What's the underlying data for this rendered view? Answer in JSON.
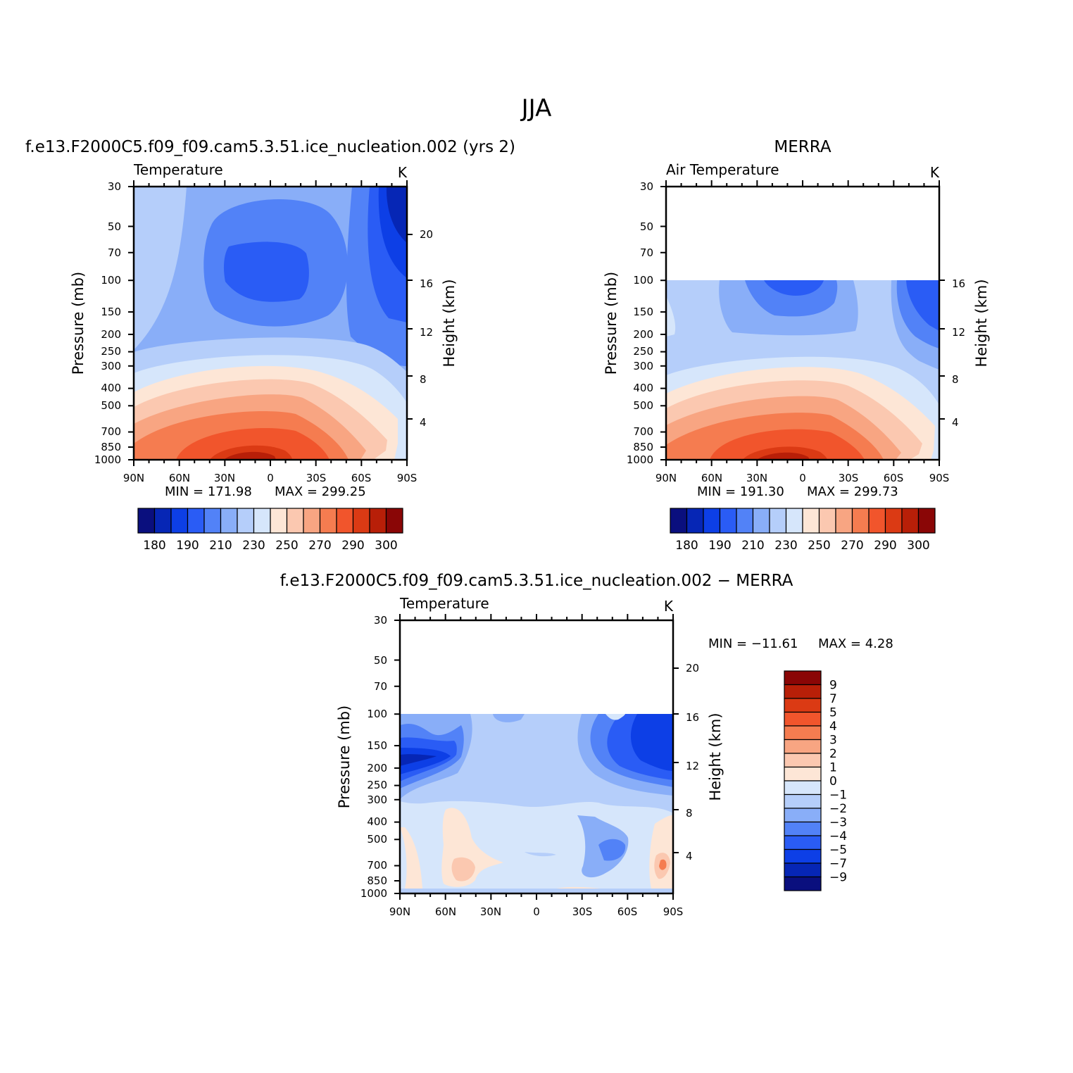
{
  "figure": {
    "title": "JJA"
  },
  "palette": [
    "#0a0f7e",
    "#0626b5",
    "#0d3fe6",
    "#2a5cf5",
    "#5282f7",
    "#89aef8",
    "#b5cefa",
    "#d6e6fb",
    "#fde6d6",
    "#fbc8b0",
    "#f8a582",
    "#f57c50",
    "#f1552c",
    "#db3a14",
    "#b81f08",
    "#8a0606"
  ],
  "chart_data": [
    {
      "type": "heatmap",
      "panel": "model",
      "title": "f.e13.F2000C5.f09_f09.cam5.3.51.ice_nucleation.002 (yrs 2)",
      "variable": "Temperature",
      "units": "K",
      "xlabel": "",
      "ylabel": "Pressure (mb)",
      "y2label": "Height (km)",
      "x_ticks": [
        "90N",
        "60N",
        "30N",
        "0",
        "30S",
        "60S",
        "90S"
      ],
      "y_ticks": [
        "30",
        "50",
        "70",
        "100",
        "150",
        "200",
        "250",
        "300",
        "400",
        "500",
        "700",
        "850",
        "1000"
      ],
      "y2_ticks": [
        "20",
        "16",
        "12",
        "8",
        "4"
      ],
      "y_scale": "log",
      "ylim": [
        1000,
        30
      ],
      "min": "171.98",
      "max": "299.25",
      "min_label": "MIN = 171.98",
      "max_label": "MAX = 299.25",
      "colorbar": {
        "orientation": "horizontal",
        "labels": [
          "180",
          "190",
          "210",
          "230",
          "250",
          "270",
          "290",
          "300"
        ]
      }
    },
    {
      "type": "heatmap",
      "panel": "obs",
      "title": "MERRA",
      "variable": "Air Temperature",
      "units": "K",
      "xlabel": "",
      "ylabel": "Pressure (mb)",
      "y2label": "Height (km)",
      "x_ticks": [
        "90N",
        "60N",
        "30N",
        "0",
        "30S",
        "60S",
        "90S"
      ],
      "y_ticks": [
        "30",
        "50",
        "70",
        "100",
        "150",
        "200",
        "250",
        "300",
        "400",
        "500",
        "700",
        "850",
        "1000"
      ],
      "y2_ticks": [
        "16",
        "12",
        "8",
        "4"
      ],
      "y_scale": "log",
      "ylim": [
        1000,
        30
      ],
      "data_top_pressure": 100,
      "min": "191.30",
      "max": "299.73",
      "min_label": "MIN = 191.30",
      "max_label": "MAX = 299.73",
      "colorbar": {
        "orientation": "horizontal",
        "labels": [
          "180",
          "190",
          "210",
          "230",
          "250",
          "270",
          "290",
          "300"
        ]
      }
    },
    {
      "type": "heatmap",
      "panel": "difference",
      "title": "f.e13.F2000C5.f09_f09.cam5.3.51.ice_nucleation.002 − MERRA",
      "variable": "Temperature",
      "units": "K",
      "xlabel": "",
      "ylabel": "Pressure (mb)",
      "y2label": "Height (km)",
      "x_ticks": [
        "90N",
        "60N",
        "30N",
        "0",
        "30S",
        "60S",
        "90S"
      ],
      "y_ticks": [
        "30",
        "50",
        "70",
        "100",
        "150",
        "200",
        "250",
        "300",
        "400",
        "500",
        "700",
        "850",
        "1000"
      ],
      "y2_ticks": [
        "20",
        "16",
        "12",
        "8",
        "4"
      ],
      "y_scale": "log",
      "ylim": [
        1000,
        30
      ],
      "data_top_pressure": 100,
      "min": "−11.61",
      "max": "4.28",
      "min_label": "MIN = −11.61",
      "max_label": "MAX =   4.28",
      "colorbar": {
        "orientation": "vertical",
        "labels": [
          "9",
          "7",
          "5",
          "4",
          "3",
          "2",
          "1",
          "0",
          "−1",
          "−2",
          "−3",
          "−4",
          "−5",
          "−7",
          "−9"
        ]
      }
    }
  ]
}
